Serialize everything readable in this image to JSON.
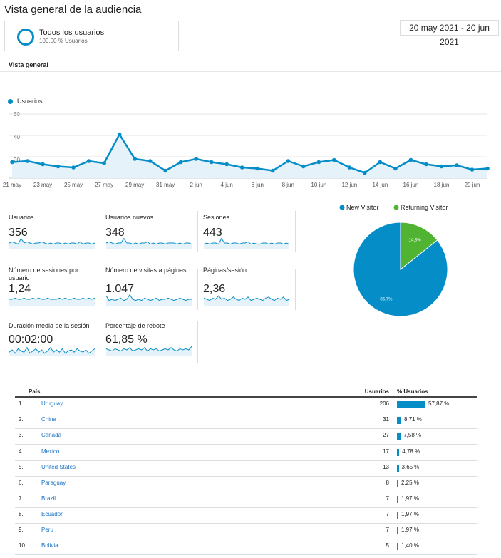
{
  "page": {
    "title": "Vista general de la audiencia",
    "segment": {
      "name": "Todos los usuarios",
      "sub": "100,00 % Usuarios"
    },
    "date_range": "20 may 2021 - 20 jun 2021",
    "tab": "Vista general"
  },
  "chart_data": [
    {
      "type": "line",
      "series": [
        {
          "name": "Usuarios",
          "values": [
            15,
            16,
            13,
            11,
            10,
            16,
            14,
            41,
            18,
            16,
            7,
            15,
            18,
            15,
            13,
            10,
            9,
            7,
            16,
            11,
            15,
            17,
            10,
            5,
            15,
            9,
            17,
            13,
            11,
            12,
            8,
            9
          ]
        }
      ],
      "y_ticks": [
        "60",
        "40",
        "20"
      ],
      "ylim": [
        0,
        60
      ],
      "x_tick_labels": [
        "21 may",
        "23 may",
        "25 may",
        "27 may",
        "29 may",
        "31 may",
        "2 jun",
        "4 jun",
        "6 jun",
        "8 jun",
        "10 jun",
        "12 jun",
        "14 jun",
        "16 jun",
        "18 jun",
        "20 jun"
      ],
      "color": "#058dc7"
    },
    {
      "type": "pie",
      "labels": [
        "New Visitor",
        "Returning Visitor"
      ],
      "values": [
        85.7,
        14.3
      ],
      "value_labels": [
        "85,7%",
        "14,3%"
      ],
      "colors": [
        "#058dc7",
        "#50b432"
      ]
    }
  ],
  "metrics": [
    {
      "label": "Usuarios",
      "value": "356",
      "spark": [
        5,
        6,
        5,
        4,
        9,
        5,
        6,
        5,
        4,
        5,
        5,
        6,
        5,
        4,
        5,
        4,
        5,
        5,
        4,
        5,
        4,
        5,
        5,
        4,
        6,
        4,
        5,
        5,
        4,
        5
      ]
    },
    {
      "label": "Usuarios nuevos",
      "value": "348",
      "spark": [
        5,
        6,
        5,
        4,
        5,
        5,
        9,
        5,
        5,
        4,
        5,
        4,
        5,
        5,
        6,
        4,
        5,
        4,
        5,
        5,
        4,
        5,
        5,
        5,
        4,
        5,
        4,
        5,
        5,
        4
      ]
    },
    {
      "label": "Sesiones",
      "value": "443",
      "spark": [
        4,
        5,
        4,
        5,
        5,
        4,
        9,
        5,
        5,
        4,
        5,
        5,
        4,
        5,
        5,
        6,
        4,
        5,
        4,
        4,
        5,
        5,
        4,
        5,
        4,
        5,
        5,
        4,
        5,
        4
      ]
    },
    {
      "label": "Número de sesiones por usuario",
      "value": "1,24",
      "spark": [
        5,
        5,
        6,
        5,
        5,
        6,
        5,
        5,
        6,
        5,
        6,
        5,
        5,
        6,
        5,
        5,
        5,
        6,
        5,
        6,
        5,
        5,
        6,
        5,
        5,
        6,
        5,
        6,
        5,
        6
      ]
    },
    {
      "label": "Número de visitas a páginas",
      "value": "1.047",
      "spark": [
        8,
        4,
        5,
        4,
        5,
        6,
        4,
        5,
        9,
        5,
        4,
        5,
        4,
        6,
        5,
        4,
        5,
        6,
        4,
        5,
        5,
        6,
        5,
        4,
        5,
        6,
        5,
        4,
        5,
        5
      ]
    },
    {
      "label": "Páginas/sesión",
      "value": "2,36",
      "spark": [
        6,
        5,
        4,
        6,
        5,
        8,
        5,
        6,
        4,
        5,
        7,
        5,
        4,
        6,
        5,
        7,
        4,
        5,
        6,
        5,
        4,
        6,
        7,
        5,
        4,
        6,
        5,
        7,
        4,
        5
      ]
    },
    {
      "label": "Duración media de la sesión",
      "value": "00:02:00",
      "spark": [
        3,
        5,
        2,
        6,
        4,
        3,
        7,
        2,
        4,
        6,
        3,
        5,
        2,
        4,
        7,
        3,
        5,
        3,
        6,
        2,
        4,
        5,
        3,
        6,
        4,
        3,
        5,
        2,
        4,
        6
      ]
    },
    {
      "label": "Porcentaje de rebote",
      "value": "61,85 %",
      "spark": [
        6,
        5,
        4,
        6,
        5,
        4,
        6,
        5,
        7,
        4,
        5,
        6,
        5,
        7,
        4,
        6,
        5,
        6,
        4,
        5,
        6,
        5,
        7,
        5,
        4,
        6,
        5,
        6,
        5,
        8
      ]
    }
  ],
  "table": {
    "headers": {
      "country": "País",
      "users": "Usuarios",
      "pct": "% Usuarios"
    },
    "rows": [
      {
        "num": "1.",
        "country": "Uruguay",
        "users": "206",
        "pct": "57,87 %",
        "share": 57.87
      },
      {
        "num": "2.",
        "country": "China",
        "users": "31",
        "pct": "8,71 %",
        "share": 8.71
      },
      {
        "num": "3.",
        "country": "Canada",
        "users": "27",
        "pct": "7,58 %",
        "share": 7.58
      },
      {
        "num": "4.",
        "country": "Mexico",
        "users": "17",
        "pct": "4,78 %",
        "share": 4.78
      },
      {
        "num": "5.",
        "country": "United States",
        "users": "13",
        "pct": "3,65 %",
        "share": 3.65
      },
      {
        "num": "6.",
        "country": "Paraguay",
        "users": "8",
        "pct": "2,25 %",
        "share": 2.25
      },
      {
        "num": "7.",
        "country": "Brazil",
        "users": "7",
        "pct": "1,97 %",
        "share": 1.97
      },
      {
        "num": "8.",
        "country": "Ecuador",
        "users": "7",
        "pct": "1,97 %",
        "share": 1.97
      },
      {
        "num": "9.",
        "country": "Peru",
        "users": "7",
        "pct": "1,97 %",
        "share": 1.97
      },
      {
        "num": "10.",
        "country": "Bolivia",
        "users": "5",
        "pct": "1,40 %",
        "share": 1.4
      }
    ]
  }
}
